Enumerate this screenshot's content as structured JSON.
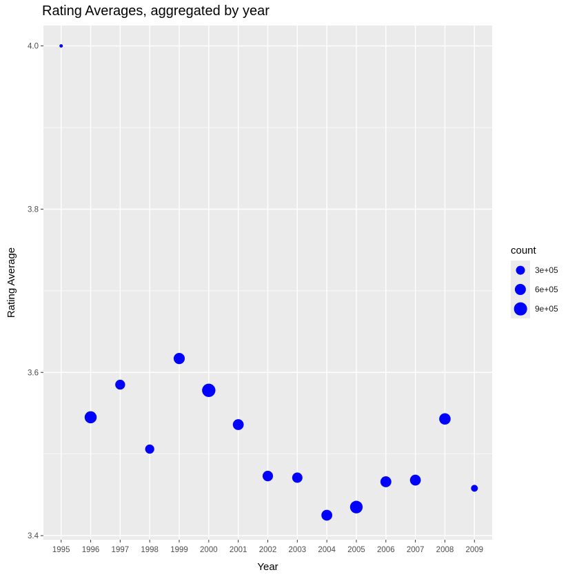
{
  "chart_data": {
    "type": "scatter",
    "title": "Rating Averages, aggregated by year",
    "xlabel": "Year",
    "ylabel": "Rating Average",
    "x": [
      "1995",
      "1996",
      "1997",
      "1998",
      "1999",
      "2000",
      "2001",
      "2002",
      "2003",
      "2004",
      "2005",
      "2006",
      "2007",
      "2008",
      "2009"
    ],
    "y": [
      4.0,
      3.545,
      3.585,
      3.506,
      3.617,
      3.578,
      3.536,
      3.473,
      3.471,
      3.425,
      3.435,
      3.466,
      3.468,
      3.543,
      3.458
    ],
    "count": [
      2,
      750000,
      420000,
      330000,
      600000,
      1000000,
      560000,
      500000,
      480000,
      560000,
      850000,
      570000,
      560000,
      650000,
      120000
    ],
    "ylim": [
      3.395,
      4.025
    ],
    "yticks": [
      "3.4",
      "3.6",
      "3.8",
      "4.0"
    ],
    "ytick_values": [
      3.4,
      3.6,
      3.8,
      4.0
    ],
    "point_color": "#0000ff",
    "panel_color": "#ebebeb",
    "grid": true,
    "legend": {
      "title": "count",
      "position": "right",
      "entries": [
        {
          "label": "3e+05",
          "value": 300000
        },
        {
          "label": "6e+05",
          "value": 600000
        },
        {
          "label": "9e+05",
          "value": 900000
        }
      ]
    }
  }
}
